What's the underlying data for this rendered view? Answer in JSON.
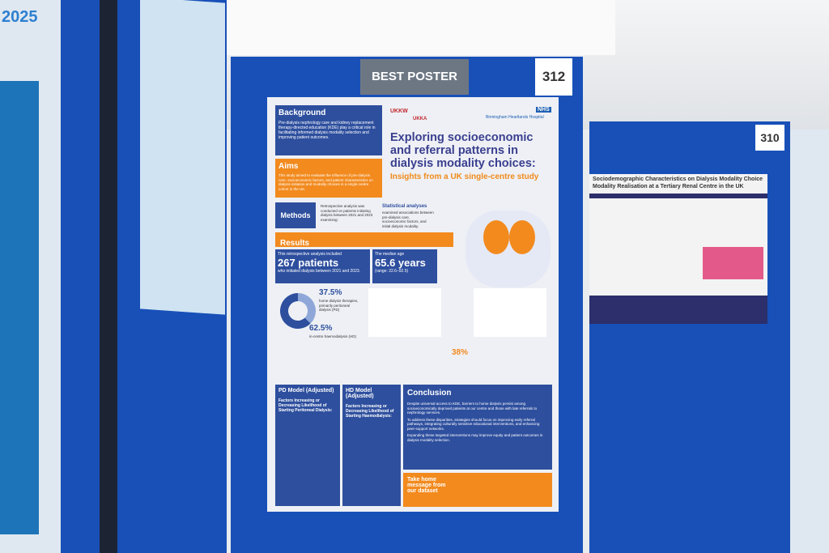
{
  "sign": {
    "label": "BEST POSTER",
    "board_number": "312"
  },
  "right_board": {
    "number": "310",
    "poster_title_1": "Sociodemographic Characteristics on Dialysis Modality Choice",
    "poster_title_2": "Modality Realisation at a Tertiary Renal Centre in the UK"
  },
  "left_edge": {
    "year": "2025"
  },
  "poster": {
    "logos": [
      "UKKW",
      "UKKA",
      "NHS",
      "Birmingham Heartlands Hospital"
    ],
    "title": "Exploring socioeconomic and referral patterns in dialysis modality choices:",
    "subtitle": "Insights from a UK single-centre study",
    "background": {
      "heading": "Background",
      "text": "Pre-dialysis nephrology care and kidney replacement therapy-directed education (KDE) play a critical role in facilitating informed dialysis modality selection and improving patient outcomes."
    },
    "aims": {
      "heading": "Aims",
      "text": "This study aimed to evaluate the influence of pre-dialysis care, socioeconomic factors, and patient characteristics on dialysis initiation and modality choices in a single-centre cohort in the UK."
    },
    "methods": {
      "heading": "Methods",
      "text": "Retrospective analysis was conducted on patients initiating dialysis between 2021 and 2023 examining:",
      "stats_heading": "Statistical analyses",
      "stats_text": "examined associations between pre-dialysis care, socioeconomic factors, and initial dialysis modality."
    },
    "results": {
      "heading": "Results",
      "patients_intro": "This retrospective analysis included",
      "patients": "267 patients",
      "patients_note": "who initiated dialysis between 2021 and 2023.",
      "age_intro": "The median age",
      "age": "65.6 years",
      "age_range": "(range: 22.6–92.5)",
      "donut": {
        "values": [
          37.5,
          62.5
        ],
        "labels": [
          "37.5%",
          "62.5%"
        ],
        "notes": [
          "home dialysis therapies, primarily peritoneal dialysis (PD)",
          "in-centre haemodialysis (HD)"
        ]
      },
      "late_referral": "38%"
    },
    "pd_model": {
      "heading": "PD Model (Adjusted)",
      "subheading": "Factors Increasing or Decreasing Likelihood of Starting Peritoneal Dialysis:"
    },
    "hd_model": {
      "heading": "HD Model (Adjusted)",
      "subheading": "Factors Increasing or Decreasing Likelihood of Starting Haemodialysis:"
    },
    "conclusion": {
      "heading": "Conclusion",
      "points": [
        "Despite universal access to KDE, barriers to home dialysis persist among socioeconomically deprived patients at our centre and those with late referrals to nephrology services.",
        "To address these disparities, strategies should focus on improving early referral pathways, integrating culturally sensitive educational interventions, and enhancing peer-support networks.",
        "Expanding these targeted interventions may improve equity and patient outcomes in dialysis modality selection."
      ]
    },
    "take_home": {
      "heading": "Take home message from our dataset"
    }
  }
}
